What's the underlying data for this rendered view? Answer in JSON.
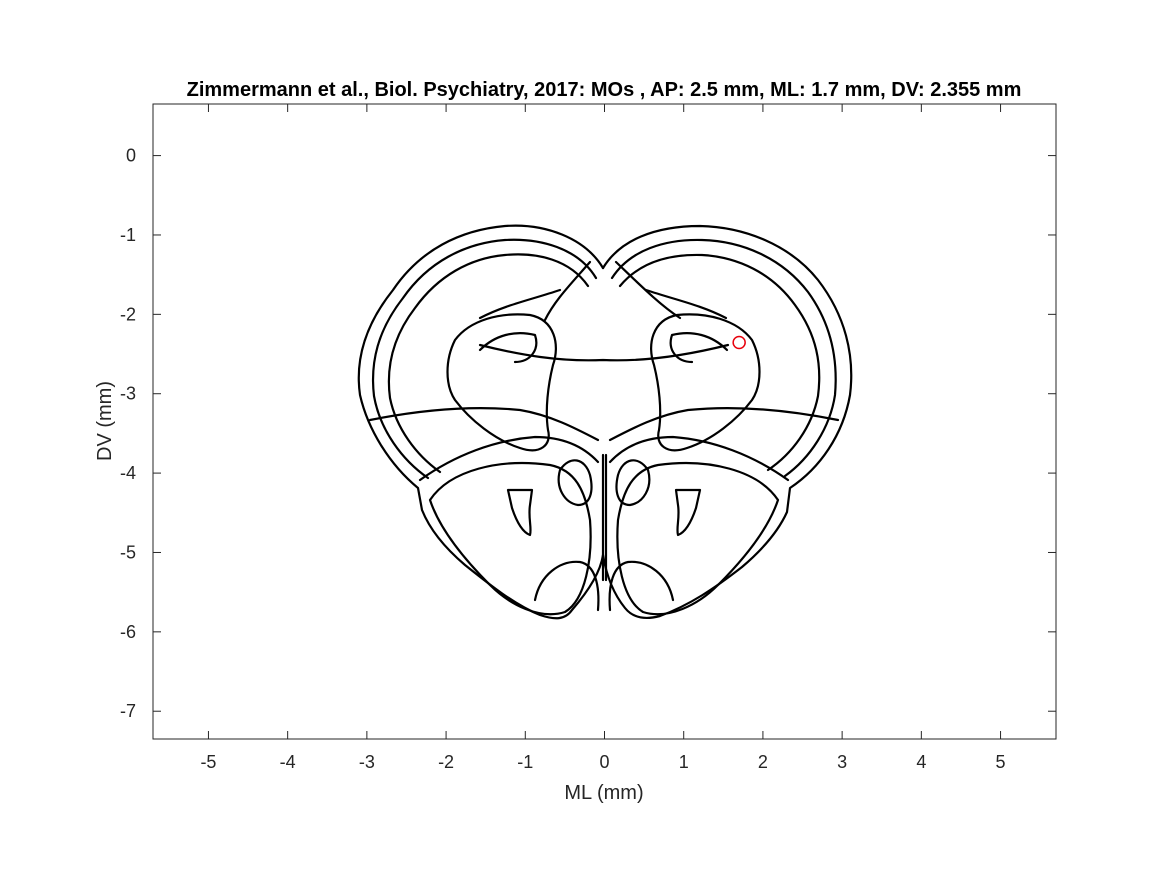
{
  "figure": {
    "title": "Zimmermann et al., Biol. Psychiatry, 2017: MOs , AP: 2.5 mm, ML: 1.7 mm, DV: 2.355 mm",
    "xlabel": "ML (mm)",
    "ylabel": "DV (mm)"
  },
  "chart_data": {
    "type": "scatter",
    "title": "Zimmermann et al., Biol. Psychiatry, 2017: MOs , AP: 2.5 mm, ML: 1.7 mm, DV: 2.355 mm",
    "xlabel": "ML (mm)",
    "ylabel": "DV (mm)",
    "xlim": [
      -5.7,
      5.7
    ],
    "ylim": [
      -7.35,
      0.65
    ],
    "xticks": [
      -5,
      -4,
      -3,
      -2,
      -1,
      0,
      1,
      2,
      3,
      4,
      5
    ],
    "yticks": [
      0,
      -1,
      -2,
      -3,
      -4,
      -5,
      -6,
      -7
    ],
    "grid": false,
    "marker": {
      "x": 1.7,
      "y": -2.355,
      "shape": "circle",
      "color": "#e8000b"
    },
    "atlas_outline": "coronal brain section, AP 2.5 mm"
  },
  "colors": {
    "axes": "#262626",
    "outline": "#000000",
    "marker": "#e8000b"
  }
}
